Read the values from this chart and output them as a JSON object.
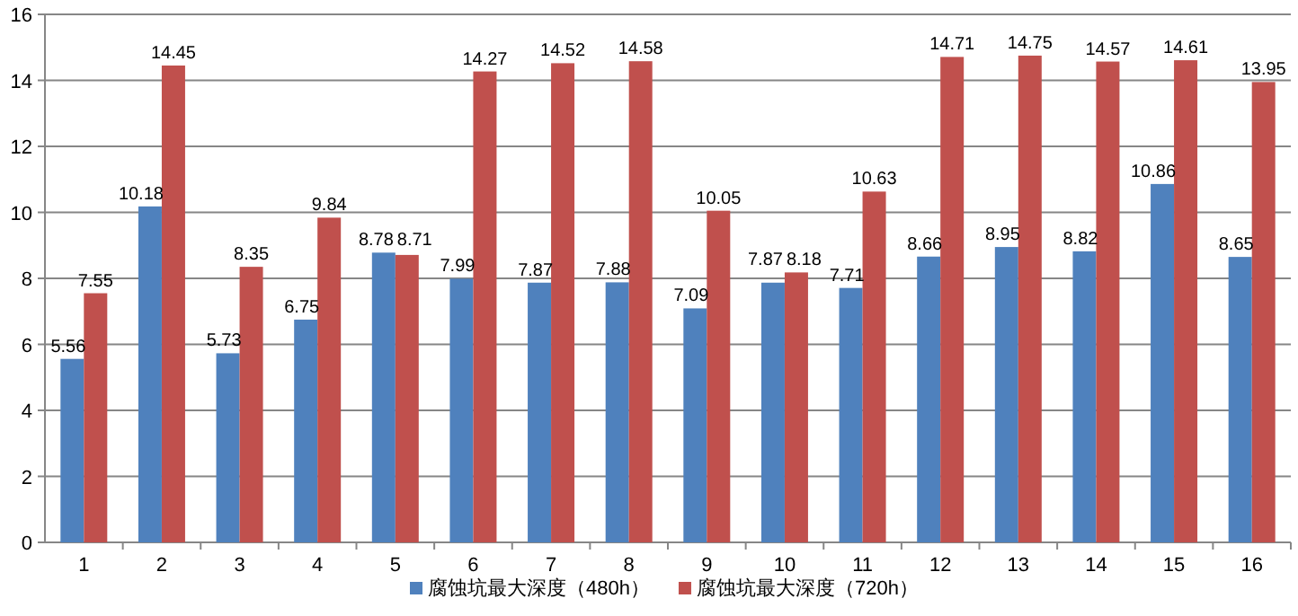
{
  "chart_data": {
    "type": "bar",
    "categories": [
      "1",
      "2",
      "3",
      "4",
      "5",
      "6",
      "7",
      "8",
      "9",
      "10",
      "11",
      "12",
      "13",
      "14",
      "15",
      "16"
    ],
    "series": [
      {
        "name": "腐蚀坑最大深度（480h）",
        "color": "#4f81bd",
        "values": [
          5.56,
          10.18,
          5.73,
          6.75,
          8.78,
          7.99,
          7.87,
          7.88,
          7.09,
          7.87,
          7.71,
          8.66,
          8.95,
          8.82,
          10.86,
          8.65
        ]
      },
      {
        "name": "腐蚀坑最大深度（720h）",
        "color": "#c0504d",
        "values": [
          7.55,
          14.45,
          8.35,
          9.84,
          8.71,
          14.27,
          14.52,
          14.58,
          10.05,
          8.18,
          10.63,
          14.71,
          14.75,
          14.57,
          14.61,
          13.95
        ]
      }
    ],
    "ylim": [
      0,
      16
    ],
    "yticks": [
      0,
      2,
      4,
      6,
      8,
      10,
      12,
      14,
      16
    ],
    "grid": "y",
    "legend": "bottom",
    "data_labels": true
  }
}
